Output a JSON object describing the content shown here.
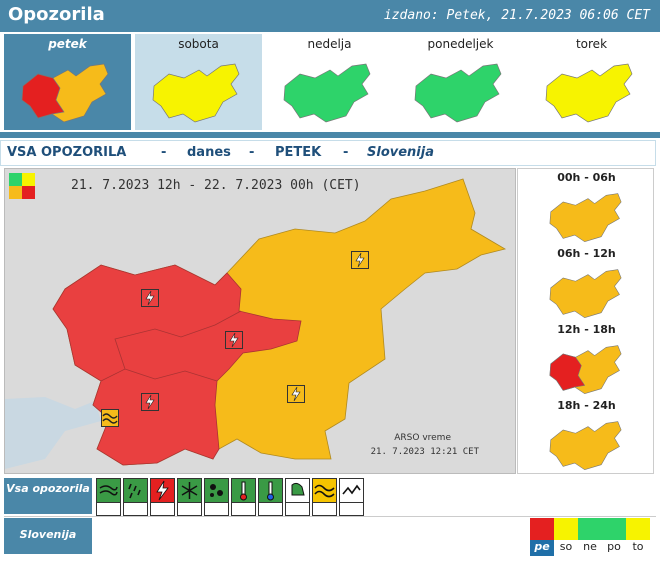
{
  "header": {
    "title": "Opozorila",
    "issued": "izdano: Petek, 21.7.2023 06:06 CET"
  },
  "days": [
    {
      "label": "petek",
      "selected": true,
      "level": "red"
    },
    {
      "label": "sobota",
      "selected": false,
      "level": "yellow"
    },
    {
      "label": "nedelja",
      "selected": false,
      "level": "green"
    },
    {
      "label": "ponedeljek",
      "selected": false,
      "level": "green"
    },
    {
      "label": "torek",
      "selected": false,
      "level": "yellow"
    }
  ],
  "subtitle": {
    "part1": "VSA OPOZORILA",
    "dash1": "-",
    "part2": "danes",
    "dash2": "-",
    "part3": "PETEK",
    "dash3": "-",
    "part4": "Slovenija"
  },
  "main_map": {
    "period": "21. 7.2023 12h  - 22. 7.2023 00h   (CET)",
    "credit": "ARSO vreme",
    "credit_time": "21. 7.2023  12:21 CET"
  },
  "slots": [
    {
      "label": "00h - 06h",
      "level": "orange"
    },
    {
      "label": "06h - 12h",
      "level": "orange"
    },
    {
      "label": "12h - 18h",
      "level": "red"
    },
    {
      "label": "18h - 24h",
      "level": "orange"
    }
  ],
  "rows": {
    "vsa": "Vsa opozorila",
    "slovenija": "Slovenija"
  },
  "icons": [
    {
      "name": "wind-icon",
      "color": "green"
    },
    {
      "name": "rain-icon",
      "color": "green"
    },
    {
      "name": "thunderstorm-icon",
      "color": "red"
    },
    {
      "name": "snow-icon",
      "color": "green"
    },
    {
      "name": "ice-icon",
      "color": "green"
    },
    {
      "name": "heat-icon",
      "color": "green"
    },
    {
      "name": "cold-icon",
      "color": "green"
    },
    {
      "name": "fog-icon",
      "color": "white"
    },
    {
      "name": "coastal-icon",
      "color": "yellow"
    },
    {
      "name": "flood-icon",
      "color": "white"
    }
  ],
  "day_blocks": [
    {
      "label": "pe",
      "color": "#e42020",
      "selected": true
    },
    {
      "label": "so",
      "color": "#f7f300",
      "selected": false
    },
    {
      "label": "ne",
      "color": "#2ed36a",
      "selected": false
    },
    {
      "label": "po",
      "color": "#2ed36a",
      "selected": false
    },
    {
      "label": "to",
      "color": "#f7f300",
      "selected": false
    }
  ],
  "colors": {
    "header": "#4a87a8",
    "red": "#e42020",
    "orange": "#f6bb1a",
    "yellow": "#f7f300",
    "green": "#2ed36a"
  }
}
